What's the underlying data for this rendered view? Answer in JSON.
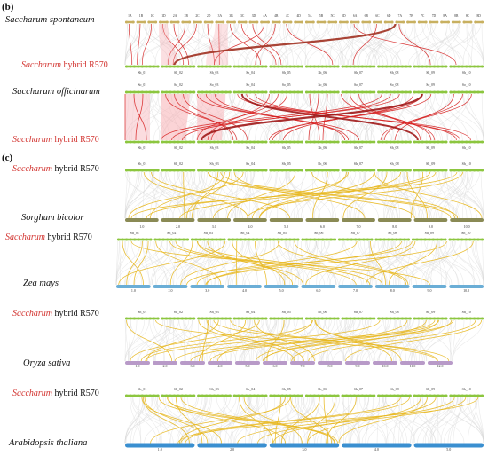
{
  "panels": [
    {
      "letter": "(b)",
      "comparisons": [
        {
          "top_label": "Saccharum spontaneum",
          "bottom_label": {
            "genus": "Saccharum",
            "rest": "hybrid",
            "cultivar": "R570"
          },
          "top_chrom": [
            "1A",
            "1B",
            "1C",
            "1D",
            "2A",
            "2B",
            "2C",
            "2D",
            "3A",
            "3B",
            "3C",
            "3D",
            "4A",
            "4B",
            "4C",
            "4D",
            "5A",
            "5B",
            "5C",
            "5D",
            "6A",
            "6B",
            "6C",
            "6D",
            "7A",
            "7B",
            "7C",
            "7D",
            "8A",
            "8B",
            "8C",
            "8D"
          ],
          "bottom_chrom": [
            "Sh_01",
            "Sh_02",
            "Sh_03",
            "Sh_04",
            "Sh_05",
            "Sh_06",
            "Sh_07",
            "Sh_08",
            "Sh_09",
            "Sh_10"
          ],
          "link_color": "#c0392b"
        },
        {
          "top_label": "Saccharum officinarum",
          "bottom_label": {
            "genus": "Saccharum",
            "rest": "hybrid",
            "cultivar": "R570"
          },
          "top_chrom": [
            "So_01",
            "So_02",
            "So_03",
            "So_04",
            "So_05",
            "So_06",
            "So_07",
            "So_08",
            "So_09",
            "So_10"
          ],
          "bottom_chrom": [
            "Sh_01",
            "Sh_02",
            "Sh_03",
            "Sh_04",
            "Sh_05",
            "Sh_06",
            "Sh_07",
            "Sh_08",
            "Sh_09",
            "Sh_10"
          ],
          "link_color": "#e01b1b"
        }
      ]
    },
    {
      "letter": "(c)",
      "comparisons": [
        {
          "top_label": {
            "genus": "Saccharum",
            "rest": "hybrid",
            "cultivar": "R570"
          },
          "bottom_label": "Sorghum bicolor",
          "top_chrom": [
            "Sh_01",
            "Sh_02",
            "Sh_03",
            "Sh_04",
            "Sh_05",
            "Sh_06",
            "Sh_07",
            "Sh_08",
            "Sh_09",
            "Sh_10"
          ],
          "bottom_chrom": [
            "1.0",
            "2.0",
            "3.0",
            "4.0",
            "5.0",
            "6.0",
            "7.0",
            "8.0",
            "9.0",
            "10.0"
          ],
          "bottom_color": "#8a8a55"
        },
        {
          "top_label": {
            "genus": "Saccharum",
            "rest": "hybrid",
            "cultivar": "R570"
          },
          "bottom_label": "Zea mays",
          "top_chrom": [
            "Sh_01",
            "Sh_02",
            "Sh_03",
            "Sh_04",
            "Sh_05",
            "Sh_06",
            "Sh_07",
            "Sh_08",
            "Sh_09",
            "Sh_10"
          ],
          "bottom_chrom": [
            "1.0",
            "2.0",
            "3.0",
            "4.0",
            "5.0",
            "6.0",
            "7.0",
            "8.0",
            "9.0",
            "10.0"
          ],
          "bottom_color": "#6baed6"
        },
        {
          "top_label": {
            "genus": "Saccharum",
            "rest": "hybrid",
            "cultivar": "R570"
          },
          "bottom_label": "Oryza sativa",
          "top_chrom": [
            "Sh_01",
            "Sh_02",
            "Sh_03",
            "Sh_04",
            "Sh_05",
            "Sh_06",
            "Sh_07",
            "Sh_08",
            "Sh_09",
            "Sh_10"
          ],
          "bottom_chrom": [
            "1.0",
            "2.0",
            "3.0",
            "4.0",
            "5.0",
            "6.0",
            "7.0",
            "8.0",
            "9.0",
            "10.0",
            "11.0",
            "12.0"
          ],
          "bottom_color": "#b89ac8"
        },
        {
          "top_label": {
            "genus": "Saccharum",
            "rest": "hybrid",
            "cultivar": "R570"
          },
          "bottom_label": "Arabidopsis thaliana",
          "top_chrom": [
            "Sh_01",
            "Sh_02",
            "Sh_03",
            "Sh_04",
            "Sh_05",
            "Sh_06",
            "Sh_07",
            "Sh_08",
            "Sh_09",
            "Sh_10"
          ],
          "bottom_chrom": [
            "1.0",
            "2.0",
            "3.0",
            "4.0",
            "5.0"
          ],
          "bottom_color": "#3a8fd0"
        }
      ]
    }
  ],
  "colors": {
    "sh_bar": "#8cc63f",
    "top_bar_b": "#c8b060",
    "background_links": "#d9d9d9",
    "red_links": "#d62020",
    "yellow_links": "#e8b820"
  }
}
